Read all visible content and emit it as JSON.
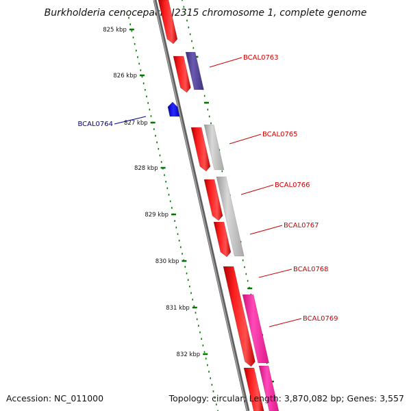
{
  "title": "Burkholderia cenocepacia J2315 chromosome 1, complete genome",
  "accession_text": "Accession: NC_011000",
  "topology_text": "Topology: circular; Length: 3,870,082 bp; Genes: 3,557",
  "ticks": [
    "825 kbp",
    "826 kbp",
    "827 kbp",
    "828 kbp",
    "829 kbp",
    "830 kbp",
    "831 kbp",
    "832 kbp"
  ],
  "colors": {
    "cds": "#ff0000",
    "cds_dark": "#cc0000",
    "rna_blue": "#0000ff",
    "purple": "#5a4a9a",
    "gray": "#c8c8c8",
    "magenta": "#ff2aa0",
    "backbone": "#808080",
    "tick_green": "#007700",
    "label_red": "#cc0000",
    "label_blue": "#00008b"
  },
  "gene_labels": [
    {
      "name": "BCAL0763",
      "color": "red"
    },
    {
      "name": "BCAL0764",
      "color": "blue"
    },
    {
      "name": "BCAL0765",
      "color": "red"
    },
    {
      "name": "BCAL0766",
      "color": "red"
    },
    {
      "name": "BCAL0767",
      "color": "red"
    },
    {
      "name": "BCAL0768",
      "color": "red"
    },
    {
      "name": "BCAL0769",
      "color": "red"
    }
  ]
}
